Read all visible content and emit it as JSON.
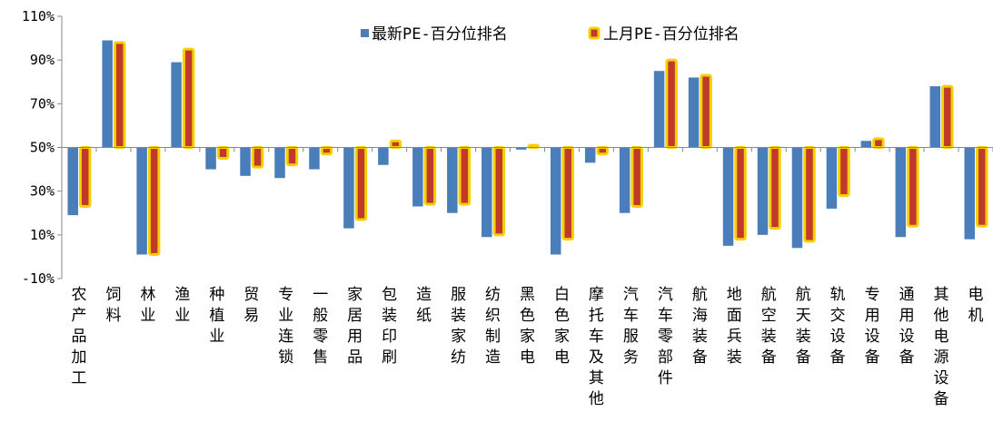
{
  "chart_data": {
    "type": "bar",
    "title": "",
    "xlabel": "",
    "ylabel": "",
    "ylim": [
      -10,
      110
    ],
    "yticks": [
      -10,
      10,
      30,
      50,
      70,
      90,
      110
    ],
    "ytick_labels": [
      "-10%",
      "10%",
      "30%",
      "50%",
      "70%",
      "90%",
      "110%"
    ],
    "baseline": 50,
    "legend_position": "top",
    "categories": [
      "农产品加工",
      "饲料",
      "林业",
      "渔业",
      "种植业",
      "贸易",
      "专业连锁",
      "一般零售",
      "家居用品",
      "包装印刷",
      "造纸",
      "服装家纺",
      "纺织制造",
      "黑色家电",
      "白色家电",
      "摩托车及其他",
      "汽车服务",
      "汽车零部件",
      "航海装备",
      "地面兵装",
      "航空装备",
      "航天装备",
      "轨交设备",
      "专用设备",
      "通用设备",
      "其他电源设备",
      "电机"
    ],
    "series": [
      {
        "name": "最新PE-百分位排名",
        "color": "#4a7ebb",
        "values": [
          19,
          99,
          1,
          89,
          40,
          37,
          36,
          40,
          13,
          42,
          23,
          20,
          9,
          49,
          1,
          43,
          20,
          85,
          82,
          5,
          10,
          4,
          22,
          53,
          9,
          78,
          8
        ]
      },
      {
        "name": "上月PE-百分位排名",
        "color": "#c0392b",
        "border_color": "#f5d000",
        "values": [
          23,
          98,
          1,
          95,
          45,
          41,
          42,
          47,
          17,
          53,
          24,
          24,
          10,
          51,
          8,
          47,
          23,
          90,
          83,
          8,
          13,
          7,
          28,
          54,
          14,
          78,
          14
        ]
      }
    ]
  }
}
